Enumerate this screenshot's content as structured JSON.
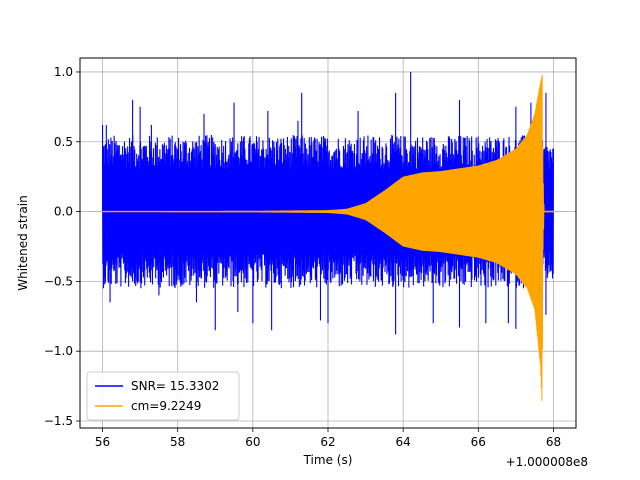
{
  "chart_data": {
    "type": "line",
    "title": "",
    "xlabel": "Time (s)",
    "ylabel": "Whitened strain",
    "x_offset_label": "+1.000008e8",
    "xlim": [
      55.4,
      68.6
    ],
    "ylim": [
      -1.55,
      1.1
    ],
    "xticks": [
      {
        "value": 56,
        "label": "56"
      },
      {
        "value": 58,
        "label": "58"
      },
      {
        "value": 60,
        "label": "60"
      },
      {
        "value": 62,
        "label": "62"
      },
      {
        "value": 64,
        "label": "64"
      },
      {
        "value": 66,
        "label": "66"
      },
      {
        "value": 68,
        "label": "68"
      }
    ],
    "yticks": [
      {
        "value": 1.0,
        "label": "1.0"
      },
      {
        "value": 0.5,
        "label": "0.5"
      },
      {
        "value": 0.0,
        "label": "0.0"
      },
      {
        "value": -0.5,
        "label": "−0.5"
      },
      {
        "value": -1.0,
        "label": "−1.0"
      },
      {
        "value": -1.5,
        "label": "−1.5"
      }
    ],
    "grid": true,
    "legend_position": "lower-left",
    "series": [
      {
        "name": "SNR= 15.3302",
        "color": "#0000ff",
        "kind": "noise-band",
        "x": [
          56,
          57,
          58,
          59,
          60,
          61,
          62,
          63,
          64,
          65,
          66,
          67,
          67.7,
          67.75,
          68
        ],
        "upper": [
          0.55,
          0.55,
          0.55,
          0.55,
          0.55,
          0.55,
          0.55,
          0.55,
          0.55,
          0.55,
          0.55,
          0.55,
          0.55,
          0.5,
          0.5
        ],
        "lower": [
          -0.55,
          -0.55,
          -0.55,
          -0.55,
          -0.55,
          -0.55,
          -0.55,
          -0.55,
          -0.55,
          -0.55,
          -0.55,
          -0.55,
          -0.55,
          -0.5,
          -0.5
        ],
        "peaks_up": [
          [
            56.0,
            0.62
          ],
          [
            56.1,
            0.62
          ],
          [
            56.8,
            0.8
          ],
          [
            57.0,
            0.75
          ],
          [
            57.3,
            0.62
          ],
          [
            58.7,
            0.7
          ],
          [
            59.5,
            0.78
          ],
          [
            60.4,
            0.72
          ],
          [
            61.2,
            0.65
          ],
          [
            61.3,
            0.85
          ],
          [
            62.8,
            0.72
          ],
          [
            63.8,
            0.85
          ],
          [
            64.2,
            1.0
          ],
          [
            65.5,
            0.8
          ],
          [
            67.0,
            0.75
          ],
          [
            67.4,
            0.78
          ],
          [
            67.8,
            0.85
          ]
        ],
        "peaks_down": [
          [
            56.2,
            -0.65
          ],
          [
            57.5,
            -0.6
          ],
          [
            58.5,
            -0.65
          ],
          [
            59.0,
            -0.85
          ],
          [
            59.6,
            -0.72
          ],
          [
            60.0,
            -0.8
          ],
          [
            60.5,
            -0.85
          ],
          [
            61.8,
            -0.78
          ],
          [
            62.0,
            -0.8
          ],
          [
            63.8,
            -0.88
          ],
          [
            64.8,
            -0.8
          ],
          [
            65.5,
            -0.83
          ],
          [
            66.2,
            -0.8
          ],
          [
            66.8,
            -0.8
          ],
          [
            67.0,
            -0.84
          ],
          [
            67.8,
            -0.74
          ]
        ]
      },
      {
        "name": "cm=9.2249",
        "color": "#ffa500",
        "kind": "chirp",
        "x": [
          56,
          60,
          62,
          62.5,
          63,
          63.5,
          64,
          64.5,
          65,
          65.5,
          66,
          66.5,
          67,
          67.3,
          67.5,
          67.65,
          67.7,
          67.72,
          67.75,
          68
        ],
        "upper": [
          0.004,
          0.005,
          0.01,
          0.02,
          0.06,
          0.15,
          0.25,
          0.28,
          0.29,
          0.31,
          0.33,
          0.37,
          0.45,
          0.55,
          0.7,
          0.92,
          0.98,
          0.3,
          0.005,
          0.005
        ],
        "lower": [
          -0.004,
          -0.005,
          -0.01,
          -0.02,
          -0.06,
          -0.15,
          -0.25,
          -0.28,
          -0.29,
          -0.31,
          -0.33,
          -0.37,
          -0.45,
          -0.55,
          -0.7,
          -1.1,
          -1.4,
          -0.3,
          -0.005,
          -0.005
        ]
      }
    ]
  }
}
